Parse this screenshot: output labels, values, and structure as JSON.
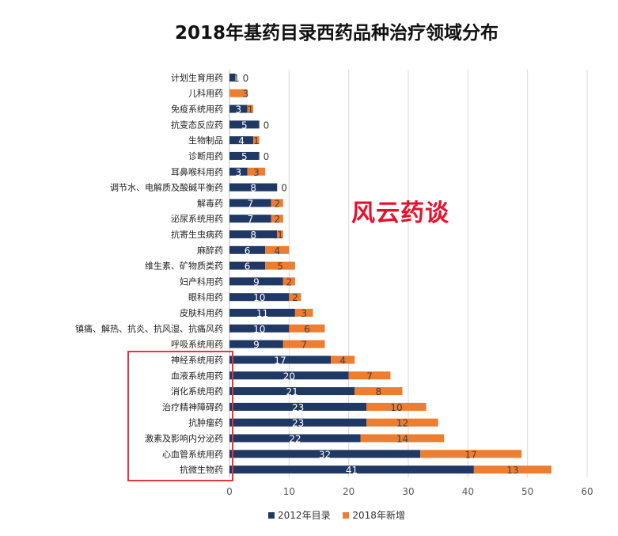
{
  "chart_data": {
    "type": "bar",
    "orientation": "horizontal",
    "stacked": true,
    "title": "2018年基药目录西药品种治疗领域分布",
    "categories": [
      "计划生育用药",
      "儿科用药",
      "免疫系统用药",
      "抗变态反应药",
      "生物制品",
      "诊断用药",
      "耳鼻喉科用药",
      "调节水、电解质及酸碱平衡药",
      "解毒药",
      "泌尿系统用药",
      "抗寄生虫病药",
      "麻醉药",
      "维生素、矿物质类药",
      "妇产科用药",
      "眼科用药",
      "皮肤科用药",
      "镇痛、解热、抗炎、抗风湿、抗痛风药",
      "呼吸系统用药",
      "神经系统用药",
      "血液系统用药",
      "消化系统用药",
      "治疗精神障碍药",
      "抗肿瘤药",
      "激素及影响内分泌药",
      "心血管系统用药",
      "抗微生物药"
    ],
    "series": [
      {
        "name": "2012年目录",
        "color": "#203864",
        "values": [
          1,
          0,
          3,
          5,
          4,
          5,
          3,
          8,
          7,
          7,
          8,
          6,
          6,
          9,
          10,
          11,
          10,
          9,
          17,
          20,
          21,
          23,
          23,
          22,
          32,
          41
        ]
      },
      {
        "name": "2018年新增",
        "color": "#ed7d31",
        "values": [
          0,
          3,
          1,
          0,
          1,
          0,
          3,
          0,
          2,
          2,
          1,
          4,
          5,
          2,
          2,
          3,
          6,
          7,
          4,
          7,
          8,
          10,
          12,
          14,
          17,
          13
        ]
      }
    ],
    "xlim": [
      0,
      60
    ],
    "xticks": [
      0,
      10,
      20,
      30,
      40,
      50,
      60
    ],
    "grid": true,
    "legend_position": "bottom"
  },
  "watermark": "风云药谈"
}
